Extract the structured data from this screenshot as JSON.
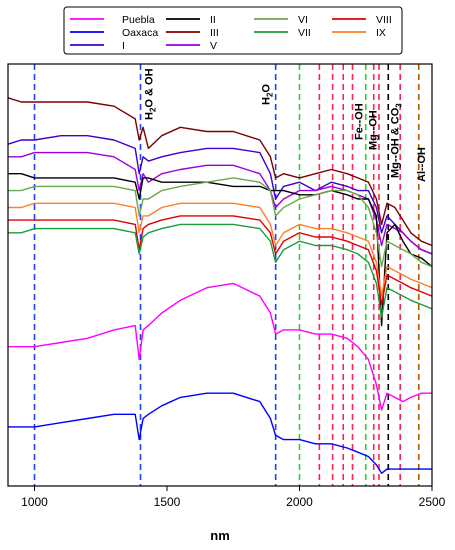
{
  "chart_data": {
    "type": "line",
    "xlabel": "nm",
    "xlim": [
      900,
      2500
    ],
    "x_ticks": [
      1000,
      1500,
      2000,
      2500
    ],
    "y_ticks_shown": false,
    "legend": {
      "placement": "top",
      "entries": [
        {
          "name": "Puebla",
          "color": "#ff00ff"
        },
        {
          "name": "Oaxaca",
          "color": "#0000ff"
        },
        {
          "name": "I",
          "color": "#3f00cc"
        },
        {
          "name": "II",
          "color": "#000000"
        },
        {
          "name": "III",
          "color": "#7a0000"
        },
        {
          "name": "V",
          "color": "#9a00e6"
        },
        {
          "name": "VI",
          "color": "#6aa84f"
        },
        {
          "name": "VII",
          "color": "#1a9e3a"
        },
        {
          "name": "VIII",
          "color": "#e00000"
        },
        {
          "name": "IX",
          "color": "#ff7f2a"
        }
      ]
    },
    "annotations": [
      {
        "id": "h2o-oh",
        "parts": [
          "H",
          "2",
          "O & OH"
        ],
        "x": 1400
      },
      {
        "id": "h2o",
        "parts": [
          "H",
          "2",
          "O"
        ],
        "x": 1910
      },
      {
        "id": "fe-oh",
        "parts": [
          "Fe--OH"
        ],
        "x": 2290
      },
      {
        "id": "mg-oh",
        "parts": [
          "Mg--OH"
        ],
        "x": 2320
      },
      {
        "id": "mg-oh-co3",
        "parts": [
          "Mg--OH & CO",
          "3",
          ""
        ],
        "x": 2350
      },
      {
        "id": "al-oh",
        "parts": [
          "Al--OH"
        ],
        "x": 2450
      }
    ],
    "reference_lines": [
      {
        "x": 1000,
        "color": "#1f3fff"
      },
      {
        "x": 1400,
        "color": "#1f3fff"
      },
      {
        "x": 1910,
        "color": "#1f3fff"
      },
      {
        "x": 2000,
        "color": "#33cc33"
      },
      {
        "x": 2075,
        "color": "#ff2255"
      },
      {
        "x": 2125,
        "color": "#ff2255"
      },
      {
        "x": 2165,
        "color": "#ff2255"
      },
      {
        "x": 2200,
        "color": "#ff2255"
      },
      {
        "x": 2250,
        "color": "#33cc33"
      },
      {
        "x": 2280,
        "color": "#ff2255"
      },
      {
        "x": 2300,
        "color": "#ff2255"
      },
      {
        "x": 2335,
        "color": "#000000"
      },
      {
        "x": 2380,
        "color": "#ff2255"
      },
      {
        "x": 2450,
        "color": "#b35900"
      }
    ],
    "ylim": [
      0,
      1
    ],
    "x": [
      900,
      950,
      1000,
      1100,
      1200,
      1300,
      1380,
      1395,
      1410,
      1430,
      1480,
      1550,
      1650,
      1750,
      1850,
      1890,
      1910,
      1940,
      2000,
      2060,
      2120,
      2180,
      2220,
      2260,
      2290,
      2310,
      2330,
      2360,
      2390,
      2420,
      2460,
      2500
    ],
    "series": [
      {
        "name": "III",
        "color": "#7a0000",
        "values": [
          0.92,
          0.91,
          0.91,
          0.91,
          0.91,
          0.9,
          0.87,
          0.82,
          0.85,
          0.8,
          0.83,
          0.85,
          0.84,
          0.84,
          0.82,
          0.78,
          0.73,
          0.74,
          0.73,
          0.74,
          0.75,
          0.74,
          0.73,
          0.72,
          0.68,
          0.62,
          0.67,
          0.66,
          0.63,
          0.6,
          0.58,
          0.57
        ]
      },
      {
        "name": "I",
        "color": "#3f00cc",
        "values": [
          0.81,
          0.82,
          0.82,
          0.83,
          0.83,
          0.82,
          0.8,
          0.74,
          0.78,
          0.77,
          0.78,
          0.79,
          0.8,
          0.8,
          0.79,
          0.74,
          0.68,
          0.71,
          0.72,
          0.7,
          0.72,
          0.71,
          0.7,
          0.7,
          0.66,
          0.6,
          0.64,
          0.62,
          0.6,
          0.58,
          0.56,
          0.55
        ]
      },
      {
        "name": "V",
        "color": "#9a00e6",
        "values": [
          0.78,
          0.78,
          0.79,
          0.79,
          0.79,
          0.78,
          0.75,
          0.7,
          0.74,
          0.72,
          0.74,
          0.75,
          0.76,
          0.76,
          0.74,
          0.7,
          0.66,
          0.68,
          0.7,
          0.7,
          0.71,
          0.7,
          0.69,
          0.68,
          0.63,
          0.57,
          0.62,
          0.61,
          0.6,
          0.58,
          0.56,
          0.55
        ]
      },
      {
        "name": "II",
        "color": "#000000",
        "values": [
          0.74,
          0.74,
          0.73,
          0.73,
          0.73,
          0.73,
          0.72,
          0.68,
          0.73,
          0.73,
          0.72,
          0.72,
          0.72,
          0.71,
          0.71,
          0.7,
          0.7,
          0.7,
          0.69,
          0.69,
          0.7,
          0.69,
          0.68,
          0.68,
          0.64,
          0.38,
          0.6,
          0.62,
          0.58,
          0.55,
          0.54,
          0.52
        ]
      },
      {
        "name": "VI",
        "color": "#6aa84f",
        "values": [
          0.7,
          0.7,
          0.71,
          0.71,
          0.71,
          0.71,
          0.7,
          0.64,
          0.68,
          0.68,
          0.7,
          0.71,
          0.72,
          0.73,
          0.72,
          0.7,
          0.64,
          0.66,
          0.68,
          0.69,
          0.7,
          0.7,
          0.69,
          0.66,
          0.6,
          0.52,
          0.58,
          0.57,
          0.56,
          0.55,
          0.53,
          0.52
        ]
      },
      {
        "name": "IX",
        "color": "#ff7f2a",
        "values": [
          0.66,
          0.66,
          0.67,
          0.67,
          0.67,
          0.67,
          0.66,
          0.6,
          0.64,
          0.64,
          0.66,
          0.67,
          0.67,
          0.67,
          0.66,
          0.62,
          0.57,
          0.6,
          0.62,
          0.61,
          0.61,
          0.6,
          0.59,
          0.58,
          0.53,
          0.45,
          0.52,
          0.51,
          0.5,
          0.49,
          0.48,
          0.47
        ]
      },
      {
        "name": "VIII",
        "color": "#e00000",
        "values": [
          0.63,
          0.63,
          0.63,
          0.63,
          0.63,
          0.63,
          0.62,
          0.56,
          0.61,
          0.62,
          0.63,
          0.64,
          0.64,
          0.64,
          0.63,
          0.6,
          0.55,
          0.58,
          0.6,
          0.59,
          0.59,
          0.58,
          0.57,
          0.56,
          0.51,
          0.43,
          0.5,
          0.49,
          0.48,
          0.47,
          0.46,
          0.45
        ]
      },
      {
        "name": "VII",
        "color": "#1a9e3a",
        "values": [
          0.6,
          0.6,
          0.61,
          0.61,
          0.61,
          0.61,
          0.6,
          0.55,
          0.59,
          0.6,
          0.61,
          0.62,
          0.62,
          0.62,
          0.61,
          0.58,
          0.53,
          0.56,
          0.58,
          0.57,
          0.57,
          0.56,
          0.55,
          0.53,
          0.48,
          0.4,
          0.47,
          0.46,
          0.45,
          0.44,
          0.43,
          0.42
        ]
      },
      {
        "name": "Puebla",
        "color": "#ff00ff",
        "values": [
          0.33,
          0.33,
          0.33,
          0.34,
          0.35,
          0.37,
          0.38,
          0.3,
          0.37,
          0.38,
          0.41,
          0.44,
          0.47,
          0.48,
          0.45,
          0.41,
          0.36,
          0.37,
          0.37,
          0.36,
          0.36,
          0.35,
          0.33,
          0.3,
          0.24,
          0.18,
          0.22,
          0.21,
          0.2,
          0.21,
          0.22,
          0.22
        ]
      },
      {
        "name": "Oaxaca",
        "color": "#0000ff",
        "values": [
          0.14,
          0.14,
          0.14,
          0.15,
          0.16,
          0.17,
          0.17,
          0.11,
          0.16,
          0.17,
          0.19,
          0.21,
          0.22,
          0.22,
          0.2,
          0.16,
          0.12,
          0.11,
          0.11,
          0.1,
          0.1,
          0.09,
          0.08,
          0.07,
          0.05,
          0.03,
          0.04,
          0.04,
          0.04,
          0.04,
          0.04,
          0.04
        ]
      }
    ]
  }
}
